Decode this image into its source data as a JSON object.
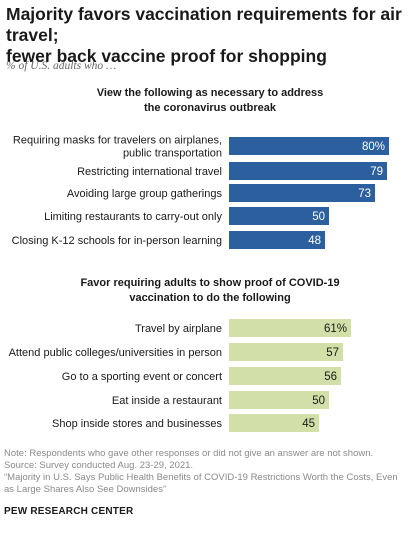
{
  "header": {
    "title_line1": "Majority favors vaccination requirements for air travel;",
    "title_line2": "fewer back vaccine proof for shopping",
    "subtitle": "% of U.S. adults who …"
  },
  "chart_data": [
    {
      "type": "bar",
      "orientation": "horizontal",
      "title_line1": "View the following as necessary to address",
      "title_line2": "the coronavirus outbreak",
      "bar_color": "#2c5f9e",
      "value_color": "#ffffff",
      "categories": [
        [
          "Requiring masks for travelers on airplanes,",
          "public transportation"
        ],
        [
          "Restricting international travel"
        ],
        [
          "Avoiding large group gatherings"
        ],
        [
          "Limiting restaurants to carry-out only"
        ],
        [
          "Closing K-12 schools for in-person learning"
        ]
      ],
      "values": [
        80,
        79,
        73,
        50,
        48
      ],
      "value_labels": [
        "80%",
        "79",
        "73",
        "50",
        "48"
      ]
    },
    {
      "type": "bar",
      "orientation": "horizontal",
      "title_line1": "Favor requiring adults to show proof of COVID-19",
      "title_line2": "vaccination to do the following",
      "bar_color": "#d3dfa8",
      "value_color": "#1a1a1a",
      "categories": [
        [
          "Travel by airplane"
        ],
        [
          "Attend public colleges/universities in person"
        ],
        [
          "Go to a sporting event or concert"
        ],
        [
          "Eat inside a restaurant"
        ],
        [
          "Shop inside stores and businesses"
        ]
      ],
      "values": [
        61,
        57,
        56,
        50,
        45
      ],
      "value_labels": [
        "61%",
        "57",
        "56",
        "50",
        "45"
      ]
    }
  ],
  "footer": {
    "note": "Note: Respondents who gave other responses or did not give an answer are not shown.",
    "source": "Source: Survey conducted Aug. 23-29, 2021.",
    "report_line1": "“Majority in U.S. Says Public Health Benefits of COVID-19 Restrictions Worth the Costs, Even",
    "report_line2": "as Large Shares Also See Downsides”",
    "brand": "PEW RESEARCH CENTER"
  }
}
